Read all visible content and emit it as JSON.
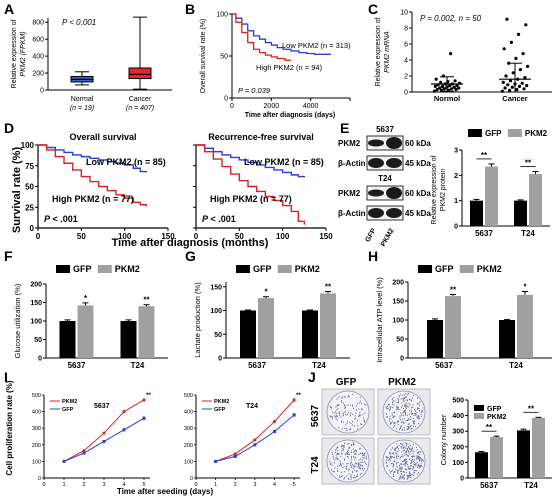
{
  "figure": {
    "panel_letters": [
      "A",
      "B",
      "C",
      "D",
      "E",
      "F",
      "G",
      "H",
      "I",
      "J"
    ]
  },
  "panels": {
    "A": {
      "chart_data": {
        "type": "box",
        "ylabel_lines": [
          "Relative expression of",
          "PKM2 (FPKM)"
        ],
        "yticks": [
          0,
          200,
          400,
          600,
          800
        ],
        "ylim": [
          0,
          850
        ],
        "annotation": "P < 0.001",
        "groups": [
          {
            "label": "Normal",
            "n_label": "(n = 19)",
            "color": "#3a5fcd",
            "min": 60,
            "q1": 95,
            "median": 125,
            "q3": 160,
            "max": 215
          },
          {
            "label": "Cancer",
            "n_label": "(n = 407)",
            "color": "#e8242b",
            "min": 10,
            "q1": 135,
            "median": 185,
            "q3": 260,
            "max": 860
          }
        ]
      }
    },
    "B": {
      "chart_data": {
        "type": "line",
        "ylabel": "Overall survival rate (%)",
        "xlabel": "Time after diagnosis (days)",
        "xticks": [
          0,
          2000,
          4000,
          6000
        ],
        "yticks": [
          0,
          50,
          100
        ],
        "xlim": [
          0,
          6000
        ],
        "ylim": [
          0,
          100
        ],
        "annotation": "P = 0.039",
        "series": [
          {
            "name": "Low PKM2 (n = 313)",
            "color": "#2a3fd8",
            "x": [
              0,
              200,
              500,
              800,
              1100,
              1400,
              1700,
              2000,
              2300,
              2600,
              3000,
              3400,
              3800,
              4200,
              4600,
              5000
            ],
            "y": [
              100,
              95,
              88,
              80,
              74,
              70,
              66,
              63,
              60,
              58,
              56,
              54,
              53,
              52,
              52,
              51
            ]
          },
          {
            "name": "High PKM2 (n = 94)",
            "color": "#e02020",
            "x": [
              0,
              200,
              500,
              800,
              1100,
              1400,
              1700,
              2000,
              2300,
              2700,
              3000
            ],
            "y": [
              100,
              90,
              78,
              66,
              58,
              54,
              51,
              49,
              47,
              45,
              45
            ]
          }
        ]
      }
    },
    "C": {
      "chart_data": {
        "type": "scatter",
        "ylabel_lines": [
          "Relative expression of",
          "PKM2 mRNA"
        ],
        "yticks": [
          0,
          2,
          4,
          6,
          8,
          10
        ],
        "ylim": [
          0,
          10
        ],
        "annotation": "P = 0.002, n = 50",
        "groups": [
          {
            "label": "Normol",
            "mean": 1.0,
            "sd": 0.9,
            "values": [
              0.1,
              0.2,
              0.2,
              0.3,
              0.3,
              0.4,
              0.4,
              0.5,
              0.5,
              0.6,
              0.6,
              0.7,
              0.7,
              0.8,
              0.8,
              0.9,
              1.0,
              1.0,
              1.1,
              1.2,
              1.3,
              1.4,
              1.6,
              2.0,
              4.8
            ]
          },
          {
            "label": "Cancer",
            "mean": 1.6,
            "sd": 2.0,
            "values": [
              0.1,
              0.2,
              0.3,
              0.4,
              0.5,
              0.6,
              0.7,
              0.8,
              0.9,
              1.0,
              1.1,
              1.2,
              1.4,
              1.6,
              1.8,
              2.0,
              2.4,
              2.8,
              3.2,
              3.6,
              4.2,
              4.8,
              5.4,
              6.2,
              7.2,
              8.4,
              9.1
            ]
          }
        ]
      }
    },
    "D": {
      "ylabel": "Survival rate (%)",
      "xlabel": "Time after diagnosis (months)",
      "charts": [
        {
          "title": "Overall survival",
          "annotation": "P < .001",
          "low_label": "Low PKM2 (n = 85)",
          "high_label": "High PKM2 (n = 77)",
          "xticks": [
            0,
            50,
            100,
            150
          ],
          "yticks": [
            0,
            25,
            50,
            75,
            100
          ],
          "xlim": [
            0,
            150
          ],
          "ylim": [
            0,
            100
          ],
          "series": [
            {
              "name": "Low PKM2",
              "color": "#2a3fd8",
              "x": [
                0,
                10,
                20,
                30,
                40,
                50,
                60,
                70,
                80,
                90,
                100,
                110,
                118,
                125
              ],
              "y": [
                100,
                97,
                94,
                91,
                88,
                86,
                84,
                82,
                80,
                78,
                76,
                72,
                68,
                67
              ]
            },
            {
              "name": "High PKM2",
              "color": "#e02020",
              "x": [
                0,
                10,
                20,
                30,
                40,
                50,
                60,
                70,
                80,
                90,
                100,
                110,
                118,
                125
              ],
              "y": [
                100,
                94,
                86,
                78,
                70,
                62,
                56,
                50,
                45,
                40,
                36,
                31,
                28,
                26
              ]
            }
          ]
        },
        {
          "title": "Recurrence-free survival",
          "annotation": "P < .001",
          "low_label": "Low PKM2 (n = 85)",
          "high_label": "High PKM2 (n = 77)",
          "xticks": [
            0,
            50,
            100,
            150
          ],
          "yticks": [
            0,
            25,
            50,
            75,
            100
          ],
          "xlim": [
            0,
            150
          ],
          "ylim": [
            0,
            100
          ],
          "series": [
            {
              "name": "Low PKM2",
              "color": "#2a3fd8",
              "x": [
                0,
                10,
                20,
                30,
                40,
                50,
                60,
                70,
                80,
                90,
                100,
                110,
                118,
                125
              ],
              "y": [
                100,
                96,
                92,
                88,
                85,
                82,
                79,
                76,
                73,
                70,
                67,
                64,
                62,
                61
              ]
            },
            {
              "name": "High PKM2",
              "color": "#e02020",
              "x": [
                0,
                10,
                20,
                30,
                40,
                50,
                60,
                70,
                80,
                90,
                100,
                110,
                118,
                125
              ],
              "y": [
                100,
                92,
                83,
                74,
                65,
                57,
                50,
                44,
                38,
                33,
                27,
                20,
                8,
                4
              ]
            }
          ]
        }
      ]
    },
    "E": {
      "blot": {
        "cell_lines": [
          "5637",
          "T24"
        ],
        "rows": [
          {
            "label": "PKM2",
            "kda": "60 kDa"
          },
          {
            "label": "β-Actin",
            "kda": "45 kDa"
          },
          {
            "label": "PKM2",
            "kda": "60 kDa"
          },
          {
            "label": "β-Actin",
            "kda": "45 kDa"
          }
        ],
        "lanes": [
          "GFP",
          "PKM2"
        ]
      },
      "chart_data": {
        "type": "bar",
        "ylabel_lines": [
          "Relative expression of",
          "PKM2 protein"
        ],
        "categories": [
          "5637",
          "T24"
        ],
        "yticks": [
          0,
          1,
          2,
          3
        ],
        "ylim": [
          0,
          3
        ],
        "series": [
          {
            "name": "GFP",
            "color": "#000000",
            "values": [
              1.0,
              1.0
            ],
            "err": [
              0.05,
              0.03
            ]
          },
          {
            "name": "PKM2",
            "color": "#a0a0a0",
            "values": [
              2.35,
              2.05
            ],
            "err": [
              0.1,
              0.1
            ]
          }
        ],
        "sig": [
          "**",
          "**"
        ]
      }
    },
    "F": {
      "chart_data": {
        "type": "bar",
        "ylabel": "Glucose utilization (%)",
        "categories": [
          "5637",
          "T24"
        ],
        "yticks": [
          0,
          50,
          100,
          150,
          200
        ],
        "ylim": [
          0,
          200
        ],
        "series": [
          {
            "name": "GFP",
            "color": "#000000",
            "values": [
              100,
              100
            ],
            "err": [
              3,
              3
            ]
          },
          {
            "name": "PKM2",
            "color": "#a0a0a0",
            "values": [
              142,
              140
            ],
            "err": [
              7,
              4
            ]
          }
        ],
        "sig": [
          "*",
          "**"
        ]
      }
    },
    "G": {
      "chart_data": {
        "type": "bar",
        "ylabel": "Lactate production (%)",
        "categories": [
          "5637",
          "T24"
        ],
        "yticks": [
          0,
          50,
          100,
          150
        ],
        "ylim": [
          0,
          160
        ],
        "series": [
          {
            "name": "GFP",
            "color": "#000000",
            "values": [
              100,
              100
            ],
            "err": [
              1,
              1
            ]
          },
          {
            "name": "PKM2",
            "color": "#a0a0a0",
            "values": [
              126,
              136
            ],
            "err": [
              3,
              4
            ]
          }
        ],
        "sig": [
          "*",
          "**"
        ]
      }
    },
    "H": {
      "chart_data": {
        "type": "bar",
        "ylabel": "Intracellular ATP level (%)",
        "categories": [
          "5637",
          "T24"
        ],
        "yticks": [
          0,
          50,
          100,
          150,
          200
        ],
        "ylim": [
          0,
          200
        ],
        "series": [
          {
            "name": "GFP",
            "color": "#000000",
            "values": [
              100,
              100
            ],
            "err": [
              3,
              1
            ]
          },
          {
            "name": "PKM2",
            "color": "#a0a0a0",
            "values": [
              163,
              166
            ],
            "err": [
              4,
              9
            ]
          }
        ],
        "sig": [
          "**",
          "*"
        ]
      }
    },
    "I": {
      "ylabel": "Cell proliferation rate (%)",
      "xlabel": "Time after seeding (days)",
      "charts": [
        {
          "title": "5637",
          "xticks": [
            0,
            1,
            2,
            3,
            4,
            5
          ],
          "yticks": [
            0,
            100,
            200,
            300,
            400,
            500
          ],
          "xlim": [
            0,
            5.3
          ],
          "ylim": [
            0,
            500
          ],
          "series": [
            {
              "name": "PKM2",
              "color": "#e02020",
              "x": [
                1,
                2,
                3,
                4,
                5
              ],
              "y": [
                100,
                165,
                270,
                400,
                470
              ],
              "err": [
                3,
                5,
                8,
                10,
                12
              ]
            },
            {
              "name": "GFP",
              "color": "#2a3fd8",
              "x": [
                1,
                2,
                3,
                4,
                5
              ],
              "y": [
                100,
                150,
                220,
                290,
                360
              ],
              "err": [
                3,
                5,
                8,
                10,
                12
              ]
            }
          ],
          "sig": [
            "**"
          ]
        },
        {
          "title": "T24",
          "xticks": [
            0,
            1,
            2,
            3,
            4,
            5
          ],
          "yticks": [
            0,
            100,
            200,
            300,
            400,
            500
          ],
          "xlim": [
            0,
            5.3
          ],
          "ylim": [
            0,
            500
          ],
          "series": [
            {
              "name": "PKM2",
              "color": "#e02020",
              "x": [
                1,
                2,
                3,
                4,
                5
              ],
              "y": [
                100,
                145,
                230,
                340,
                470
              ],
              "err": [
                3,
                5,
                8,
                10,
                14
              ]
            },
            {
              "name": "GFP",
              "color": "#2a3fd8",
              "x": [
                1,
                2,
                3,
                4,
                5
              ],
              "y": [
                100,
                130,
                200,
                280,
                380
              ],
              "err": [
                3,
                5,
                8,
                10,
                12
              ]
            }
          ],
          "sig": [
            "**"
          ]
        }
      ]
    },
    "J": {
      "wells": {
        "col_labels": [
          "GFP",
          "PKM2"
        ],
        "row_labels": [
          "5637",
          "T24"
        ]
      },
      "chart_data": {
        "type": "bar",
        "ylabel": "Colony number",
        "categories": [
          "5637",
          "T24"
        ],
        "yticks": [
          0,
          100,
          200,
          300,
          400,
          500
        ],
        "ylim": [
          0,
          500
        ],
        "series": [
          {
            "name": "GFP",
            "color": "#000000",
            "values": [
              165,
              305
            ],
            "err": [
              5,
              8
            ]
          },
          {
            "name": "PKM2",
            "color": "#a0a0a0",
            "values": [
              262,
              385
            ],
            "err": [
              6,
              4
            ]
          }
        ],
        "sig": [
          "**",
          "**"
        ]
      }
    }
  }
}
